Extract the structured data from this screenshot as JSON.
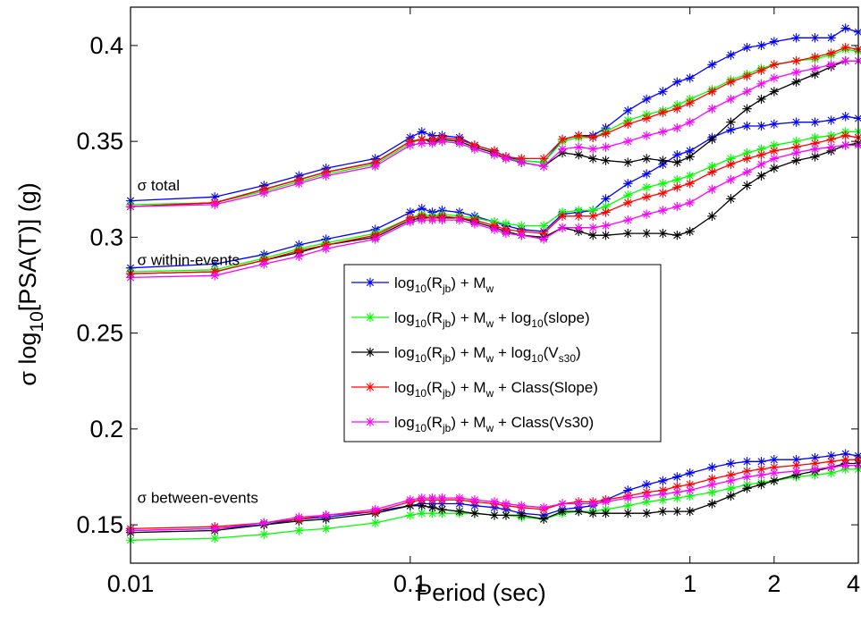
{
  "chart_data": {
    "type": "line",
    "xlabel": "Period (sec)",
    "xscale": "log",
    "xlim": [
      0.01,
      4
    ],
    "ylim": [
      0.13,
      0.42
    ],
    "x_ticks": [
      0.01,
      0.1,
      1,
      2,
      4
    ],
    "x_tick_labels": [
      "0.01",
      "0.1",
      "1",
      "2",
      "4"
    ],
    "y_ticks": [
      0.15,
      0.2,
      0.25,
      0.3,
      0.35,
      0.4
    ],
    "y_tick_labels": [
      "0.15",
      "0.2",
      "0.25",
      "0.3",
      "0.35",
      "0.4"
    ],
    "annotations": [
      {
        "text": "σ total",
        "x": 0.0105,
        "y": 0.3245
      },
      {
        "text": "σ within-events",
        "x": 0.0105,
        "y": 0.2855
      },
      {
        "text": "σ between-events",
        "x": 0.0105,
        "y": 0.1615
      }
    ],
    "legend_position": "center",
    "marker": "asterisk",
    "grid": false,
    "x": [
      0.01,
      0.02,
      0.03,
      0.04,
      0.05,
      0.075,
      0.1,
      0.11,
      0.12,
      0.13,
      0.15,
      0.17,
      0.2,
      0.22,
      0.25,
      0.3,
      0.35,
      0.4,
      0.45,
      0.5,
      0.6,
      0.7,
      0.8,
      0.9,
      1.0,
      1.2,
      1.4,
      1.6,
      1.8,
      2.0,
      2.4,
      2.8,
      3.2,
      3.6,
      4.0
    ],
    "series": [
      {
        "name": "log10(Rjb) + Mw",
        "label_parts": [
          [
            "log",
            ""
          ],
          [
            "10",
            "sub"
          ],
          [
            "(R",
            ""
          ],
          [
            "jb",
            "sub"
          ],
          [
            ") + M",
            ""
          ],
          [
            "w",
            "sub"
          ]
        ],
        "color": "#0000ff",
        "total": [
          0.319,
          0.321,
          0.327,
          0.332,
          0.336,
          0.341,
          0.352,
          0.355,
          0.353,
          0.353,
          0.352,
          0.348,
          0.345,
          0.342,
          0.34,
          0.339,
          0.351,
          0.353,
          0.353,
          0.357,
          0.366,
          0.372,
          0.376,
          0.381,
          0.383,
          0.39,
          0.395,
          0.399,
          0.4,
          0.402,
          0.404,
          0.404,
          0.404,
          0.409,
          0.407
        ],
        "within": [
          0.284,
          0.286,
          0.291,
          0.296,
          0.299,
          0.304,
          0.313,
          0.315,
          0.313,
          0.314,
          0.313,
          0.311,
          0.308,
          0.306,
          0.304,
          0.303,
          0.312,
          0.313,
          0.314,
          0.32,
          0.328,
          0.333,
          0.338,
          0.343,
          0.345,
          0.352,
          0.356,
          0.358,
          0.358,
          0.359,
          0.36,
          0.36,
          0.361,
          0.363,
          0.362
        ],
        "between": [
          0.147,
          0.148,
          0.15,
          0.153,
          0.154,
          0.157,
          0.16,
          0.161,
          0.161,
          0.161,
          0.161,
          0.16,
          0.159,
          0.158,
          0.156,
          0.155,
          0.158,
          0.159,
          0.16,
          0.163,
          0.168,
          0.171,
          0.173,
          0.175,
          0.177,
          0.18,
          0.182,
          0.183,
          0.183,
          0.184,
          0.184,
          0.185,
          0.186,
          0.187,
          0.186
        ]
      },
      {
        "name": "log10(Rjb) + Mw + log10(slope)",
        "label_parts": [
          [
            "log",
            ""
          ],
          [
            "10",
            "sub"
          ],
          [
            "(R",
            ""
          ],
          [
            "jb",
            "sub"
          ],
          [
            ") + M",
            ""
          ],
          [
            "w",
            "sub"
          ],
          [
            " + log",
            ""
          ],
          [
            "10",
            "sub"
          ],
          [
            "(slope)",
            ""
          ]
        ],
        "color": "#00ff00",
        "total": [
          0.317,
          0.318,
          0.324,
          0.329,
          0.333,
          0.338,
          0.349,
          0.351,
          0.35,
          0.35,
          0.349,
          0.346,
          0.343,
          0.341,
          0.34,
          0.339,
          0.35,
          0.352,
          0.352,
          0.355,
          0.361,
          0.364,
          0.366,
          0.369,
          0.372,
          0.377,
          0.382,
          0.385,
          0.388,
          0.39,
          0.392,
          0.393,
          0.395,
          0.398,
          0.397
        ],
        "within": [
          0.282,
          0.283,
          0.289,
          0.294,
          0.297,
          0.302,
          0.31,
          0.312,
          0.311,
          0.312,
          0.311,
          0.31,
          0.308,
          0.307,
          0.306,
          0.306,
          0.313,
          0.314,
          0.314,
          0.316,
          0.322,
          0.326,
          0.328,
          0.33,
          0.332,
          0.337,
          0.341,
          0.344,
          0.346,
          0.348,
          0.35,
          0.352,
          0.353,
          0.355,
          0.355
        ],
        "between": [
          0.142,
          0.143,
          0.145,
          0.147,
          0.148,
          0.151,
          0.155,
          0.156,
          0.156,
          0.156,
          0.156,
          0.156,
          0.155,
          0.155,
          0.154,
          0.153,
          0.156,
          0.157,
          0.157,
          0.158,
          0.16,
          0.162,
          0.163,
          0.164,
          0.165,
          0.167,
          0.169,
          0.171,
          0.172,
          0.173,
          0.175,
          0.176,
          0.177,
          0.179,
          0.179
        ]
      },
      {
        "name": "log10(Rjb) + Mw + log10(Vs30)",
        "label_parts": [
          [
            "log",
            ""
          ],
          [
            "10",
            "sub"
          ],
          [
            "(R",
            ""
          ],
          [
            "jb",
            "sub"
          ],
          [
            ") + M",
            ""
          ],
          [
            "w",
            "sub"
          ],
          [
            " + log",
            ""
          ],
          [
            "10",
            "sub"
          ],
          [
            "(V",
            ""
          ],
          [
            "s30",
            "sub"
          ],
          [
            ")",
            ""
          ]
        ],
        "color": "#000000",
        "total": [
          0.316,
          0.318,
          0.325,
          0.33,
          0.334,
          0.339,
          0.35,
          0.351,
          0.35,
          0.351,
          0.35,
          0.347,
          0.344,
          0.341,
          0.339,
          0.337,
          0.344,
          0.343,
          0.341,
          0.34,
          0.339,
          0.341,
          0.34,
          0.339,
          0.342,
          0.351,
          0.36,
          0.367,
          0.372,
          0.376,
          0.381,
          0.385,
          0.389,
          0.392,
          0.392
        ],
        "within": [
          0.281,
          0.282,
          0.288,
          0.292,
          0.296,
          0.3,
          0.309,
          0.31,
          0.31,
          0.31,
          0.31,
          0.308,
          0.305,
          0.303,
          0.301,
          0.3,
          0.305,
          0.303,
          0.301,
          0.301,
          0.302,
          0.302,
          0.302,
          0.301,
          0.303,
          0.311,
          0.32,
          0.327,
          0.332,
          0.336,
          0.34,
          0.342,
          0.345,
          0.348,
          0.349
        ],
        "between": [
          0.146,
          0.147,
          0.15,
          0.152,
          0.153,
          0.156,
          0.16,
          0.16,
          0.159,
          0.158,
          0.157,
          0.156,
          0.155,
          0.155,
          0.155,
          0.153,
          0.157,
          0.157,
          0.156,
          0.156,
          0.156,
          0.156,
          0.157,
          0.157,
          0.157,
          0.161,
          0.165,
          0.169,
          0.171,
          0.173,
          0.176,
          0.178,
          0.18,
          0.182,
          0.182
        ]
      },
      {
        "name": "log10(Rjb) + Mw + Class(Slope)",
        "label_parts": [
          [
            "log",
            ""
          ],
          [
            "10",
            "sub"
          ],
          [
            "(R",
            ""
          ],
          [
            "jb",
            "sub"
          ],
          [
            ") + M",
            ""
          ],
          [
            "w",
            "sub"
          ],
          [
            " + Class(Slope)",
            ""
          ]
        ],
        "color": "#ff0000",
        "total": [
          0.316,
          0.318,
          0.325,
          0.33,
          0.334,
          0.339,
          0.35,
          0.351,
          0.351,
          0.352,
          0.351,
          0.348,
          0.345,
          0.342,
          0.341,
          0.341,
          0.351,
          0.353,
          0.352,
          0.354,
          0.359,
          0.362,
          0.365,
          0.367,
          0.37,
          0.376,
          0.381,
          0.384,
          0.387,
          0.39,
          0.392,
          0.394,
          0.396,
          0.399,
          0.398
        ],
        "within": [
          0.281,
          0.282,
          0.288,
          0.293,
          0.296,
          0.301,
          0.31,
          0.311,
          0.31,
          0.311,
          0.31,
          0.309,
          0.306,
          0.304,
          0.303,
          0.302,
          0.311,
          0.311,
          0.311,
          0.313,
          0.318,
          0.321,
          0.323,
          0.326,
          0.328,
          0.334,
          0.338,
          0.341,
          0.343,
          0.345,
          0.347,
          0.349,
          0.351,
          0.353,
          0.352
        ],
        "between": [
          0.148,
          0.149,
          0.151,
          0.153,
          0.155,
          0.157,
          0.162,
          0.163,
          0.163,
          0.163,
          0.163,
          0.162,
          0.161,
          0.16,
          0.159,
          0.158,
          0.161,
          0.162,
          0.162,
          0.163,
          0.165,
          0.167,
          0.168,
          0.17,
          0.171,
          0.174,
          0.176,
          0.178,
          0.179,
          0.18,
          0.181,
          0.182,
          0.183,
          0.184,
          0.184
        ]
      },
      {
        "name": "log10(Rjb) + Mw + Class(Vs30)",
        "label_parts": [
          [
            "log",
            ""
          ],
          [
            "10",
            "sub"
          ],
          [
            "(R",
            ""
          ],
          [
            "jb",
            "sub"
          ],
          [
            ") + M",
            ""
          ],
          [
            "w",
            "sub"
          ],
          [
            " + Class(Vs30)",
            ""
          ]
        ],
        "color": "#ff00ff",
        "total": [
          0.316,
          0.317,
          0.323,
          0.328,
          0.332,
          0.337,
          0.348,
          0.349,
          0.349,
          0.35,
          0.349,
          0.346,
          0.343,
          0.341,
          0.339,
          0.337,
          0.346,
          0.347,
          0.346,
          0.347,
          0.35,
          0.353,
          0.355,
          0.357,
          0.36,
          0.367,
          0.372,
          0.376,
          0.38,
          0.383,
          0.386,
          0.388,
          0.39,
          0.392,
          0.392
        ],
        "within": [
          0.279,
          0.28,
          0.286,
          0.29,
          0.294,
          0.299,
          0.308,
          0.309,
          0.309,
          0.309,
          0.309,
          0.307,
          0.304,
          0.302,
          0.301,
          0.299,
          0.305,
          0.305,
          0.305,
          0.306,
          0.309,
          0.312,
          0.314,
          0.316,
          0.318,
          0.325,
          0.33,
          0.334,
          0.338,
          0.341,
          0.344,
          0.346,
          0.347,
          0.348,
          0.348
        ],
        "between": [
          0.147,
          0.148,
          0.151,
          0.154,
          0.155,
          0.158,
          0.163,
          0.164,
          0.164,
          0.164,
          0.164,
          0.163,
          0.162,
          0.161,
          0.16,
          0.159,
          0.161,
          0.161,
          0.161,
          0.162,
          0.164,
          0.165,
          0.166,
          0.167,
          0.168,
          0.171,
          0.173,
          0.175,
          0.176,
          0.177,
          0.178,
          0.179,
          0.18,
          0.181,
          0.181
        ]
      }
    ]
  }
}
